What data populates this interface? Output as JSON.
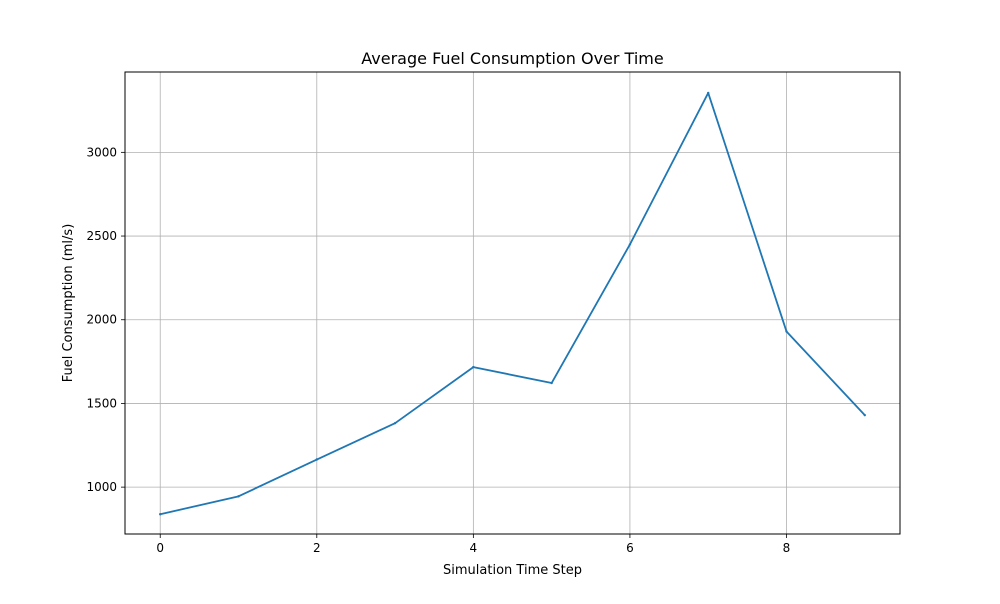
{
  "chart_data": {
    "type": "line",
    "title": "Average Fuel Consumption Over Time",
    "xlabel": "Simulation Time Step",
    "ylabel": "Fuel Consumption (ml/s)",
    "xlim": [
      -0.45,
      9.45
    ],
    "ylim": [
      720,
      3480
    ],
    "grid": true,
    "x_ticks": [
      0,
      2,
      4,
      6,
      8
    ],
    "y_ticks": [
      1000,
      1500,
      2000,
      2500,
      3000
    ],
    "series": [
      {
        "color": "#1f77b4",
        "x": [
          0,
          1,
          2,
          3,
          4,
          5,
          6,
          7,
          8,
          9
        ],
        "y": [
          838,
          945,
          1165,
          1382,
          1717,
          1622,
          2450,
          3355,
          1930,
          1430
        ]
      }
    ]
  }
}
